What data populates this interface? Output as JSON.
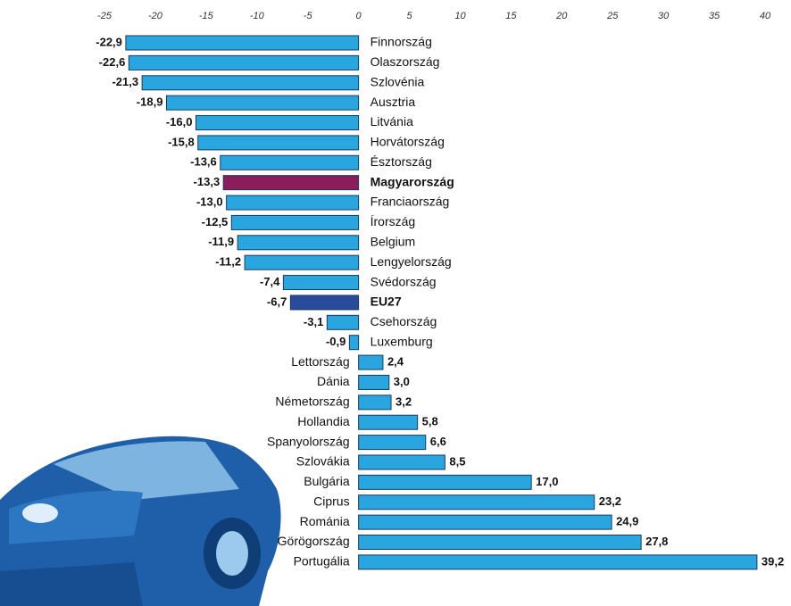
{
  "chart_data": {
    "type": "bar",
    "orientation": "horizontal",
    "categories": [
      "Finnország",
      "Olaszország",
      "Szlovénia",
      "Ausztria",
      "Litvánia",
      "Horvátország",
      "Észtország",
      "Magyarország",
      "Franciaország",
      "Írország",
      "Belgium",
      "Lengyelország",
      "Svédország",
      "EU27",
      "Csehország",
      "Luxemburg",
      "Lettország",
      "Dánia",
      "Németország",
      "Hollandia",
      "Spanyolország",
      "Szlovákia",
      "Bulgária",
      "Ciprus",
      "Románia",
      "Görögország",
      "Portugália"
    ],
    "values": [
      -22.9,
      -22.6,
      -21.3,
      -18.9,
      -16.0,
      -15.8,
      -13.6,
      -13.3,
      -13.0,
      -12.5,
      -11.9,
      -11.2,
      -7.4,
      -6.7,
      -3.1,
      -0.9,
      2.4,
      3.0,
      3.2,
      5.8,
      6.6,
      8.5,
      17.0,
      23.2,
      24.9,
      27.8,
      39.2
    ],
    "value_labels": [
      "-22,9",
      "-22,6",
      "-21,3",
      "-18,9",
      "-16,0",
      "-15,8",
      "-13,6",
      "-13,3",
      "-13,0",
      "-12,5",
      "-11,9",
      "-11,2",
      "-7,4",
      "-6,7",
      "-3,1",
      "-0,9",
      "2,4",
      "3,0",
      "3,2",
      "5,8",
      "6,6",
      "8,5",
      "17,0",
      "23,2",
      "24,9",
      "27,8",
      "39,2"
    ],
    "color": "#29a6e0",
    "colors": [
      "#29a6e0",
      "#29a6e0",
      "#29a6e0",
      "#29a6e0",
      "#29a6e0",
      "#29a6e0",
      "#29a6e0",
      "#8c1d5c",
      "#29a6e0",
      "#29a6e0",
      "#29a6e0",
      "#29a6e0",
      "#29a6e0",
      "#2a4b9b",
      "#29a6e0",
      "#29a6e0",
      "#29a6e0",
      "#29a6e0",
      "#29a6e0",
      "#29a6e0",
      "#29a6e0",
      "#29a6e0",
      "#29a6e0",
      "#29a6e0",
      "#29a6e0",
      "#29a6e0",
      "#29a6e0"
    ],
    "xlim": [
      -25,
      40
    ],
    "xticks": [
      -25,
      -20,
      -15,
      -10,
      -5,
      0,
      5,
      10,
      15,
      20,
      25,
      30,
      35,
      40
    ]
  }
}
